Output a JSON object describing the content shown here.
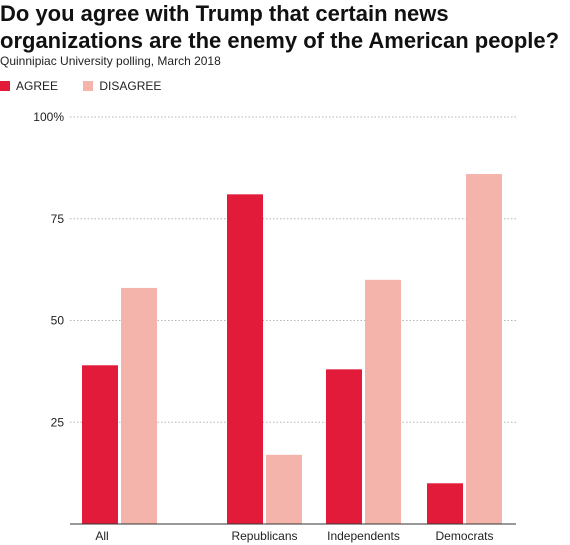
{
  "chart_data": {
    "type": "bar",
    "title": "Do you agree with Trump that certain news organizations are the enemy of the American people?",
    "subtitle": "Quinnipiac University polling, March 2018",
    "categories": [
      "All",
      "Republicans",
      "Independents",
      "Democrats"
    ],
    "series": [
      {
        "name": "AGREE",
        "color": "#e31b3a",
        "values": [
          39,
          81,
          38,
          10
        ]
      },
      {
        "name": "DISAGREE",
        "color": "#f4b4ac",
        "values": [
          58,
          17,
          60,
          86
        ]
      }
    ],
    "ylim": [
      0,
      100
    ],
    "yticks": [
      25,
      50,
      75,
      100
    ],
    "ytick_labels": [
      "25",
      "50",
      "75",
      "100%"
    ],
    "grid": true,
    "legend_position": "top-left"
  }
}
